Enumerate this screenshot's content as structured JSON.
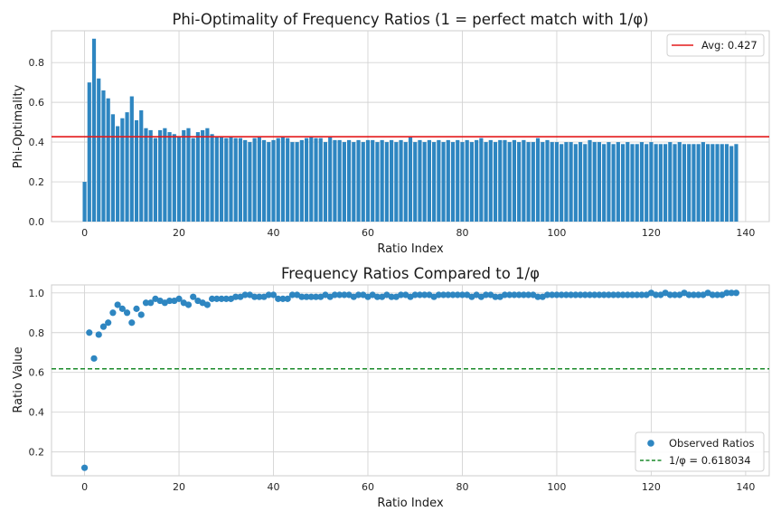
{
  "chart_data": [
    {
      "type": "bar",
      "title": "Phi-Optimality of Frequency Ratios (1 = perfect match with 1/φ)",
      "xlabel": "Ratio Index",
      "ylabel": "Phi-Optimality",
      "xlim": [
        -7,
        145
      ],
      "ylim": [
        0,
        0.96
      ],
      "xticks": [
        0,
        20,
        40,
        60,
        80,
        100,
        120,
        140
      ],
      "yticks": [
        0.0,
        0.2,
        0.4,
        0.6,
        0.8
      ],
      "ytick_labels": [
        "0.0",
        "0.2",
        "0.4",
        "0.6",
        "0.8"
      ],
      "grid": true,
      "bar_color": "#2e86c1",
      "avg_line": {
        "value": 0.427,
        "color": "#e31a1c",
        "label": "Avg: 0.427"
      },
      "legend_position": "top-right",
      "values": [
        0.2,
        0.7,
        0.92,
        0.72,
        0.66,
        0.62,
        0.54,
        0.48,
        0.52,
        0.55,
        0.63,
        0.51,
        0.56,
        0.47,
        0.46,
        0.42,
        0.46,
        0.47,
        0.45,
        0.44,
        0.43,
        0.46,
        0.47,
        0.42,
        0.45,
        0.46,
        0.47,
        0.44,
        0.43,
        0.43,
        0.42,
        0.43,
        0.42,
        0.42,
        0.41,
        0.4,
        0.42,
        0.43,
        0.41,
        0.4,
        0.41,
        0.42,
        0.43,
        0.42,
        0.4,
        0.4,
        0.41,
        0.42,
        0.43,
        0.42,
        0.42,
        0.4,
        0.43,
        0.41,
        0.41,
        0.4,
        0.41,
        0.4,
        0.41,
        0.4,
        0.41,
        0.41,
        0.4,
        0.41,
        0.4,
        0.41,
        0.4,
        0.41,
        0.4,
        0.43,
        0.4,
        0.41,
        0.4,
        0.41,
        0.4,
        0.41,
        0.4,
        0.41,
        0.4,
        0.41,
        0.4,
        0.41,
        0.4,
        0.41,
        0.42,
        0.4,
        0.41,
        0.4,
        0.41,
        0.41,
        0.4,
        0.41,
        0.4,
        0.41,
        0.4,
        0.4,
        0.42,
        0.4,
        0.41,
        0.4,
        0.4,
        0.39,
        0.4,
        0.4,
        0.39,
        0.4,
        0.39,
        0.41,
        0.4,
        0.4,
        0.39,
        0.4,
        0.39,
        0.4,
        0.39,
        0.4,
        0.39,
        0.39,
        0.4,
        0.39,
        0.4,
        0.39,
        0.39,
        0.39,
        0.4,
        0.39,
        0.4,
        0.39,
        0.39,
        0.39,
        0.39,
        0.4,
        0.39,
        0.39,
        0.39,
        0.39,
        0.39,
        0.38,
        0.39
      ]
    },
    {
      "type": "scatter",
      "title": "Frequency Ratios Compared to 1/φ",
      "xlabel": "Ratio Index",
      "ylabel": "Ratio Value",
      "xlim": [
        -7,
        145
      ],
      "ylim": [
        0.08,
        1.04
      ],
      "xticks": [
        0,
        20,
        40,
        60,
        80,
        100,
        120,
        140
      ],
      "yticks": [
        0.2,
        0.4,
        0.6,
        0.8,
        1.0
      ],
      "ytick_labels": [
        "0.2",
        "0.4",
        "0.6",
        "0.8",
        "1.0"
      ],
      "grid": true,
      "point_color": "#2e86c1",
      "series_label": "Observed Ratios",
      "ref_line": {
        "value": 0.618034,
        "color": "#1a8a2a",
        "label": "1/φ = 0.618034",
        "style": "dashed"
      },
      "legend_position": "bottom-right",
      "values": [
        0.12,
        0.8,
        0.67,
        0.79,
        0.83,
        0.85,
        0.9,
        0.94,
        0.92,
        0.9,
        0.85,
        0.92,
        0.89,
        0.95,
        0.95,
        0.97,
        0.96,
        0.95,
        0.96,
        0.96,
        0.97,
        0.95,
        0.94,
        0.98,
        0.96,
        0.95,
        0.94,
        0.97,
        0.97,
        0.97,
        0.97,
        0.97,
        0.98,
        0.98,
        0.99,
        0.99,
        0.98,
        0.98,
        0.98,
        0.99,
        0.99,
        0.97,
        0.97,
        0.97,
        0.99,
        0.99,
        0.98,
        0.98,
        0.98,
        0.98,
        0.98,
        0.99,
        0.98,
        0.99,
        0.99,
        0.99,
        0.99,
        0.98,
        0.99,
        0.99,
        0.98,
        0.99,
        0.98,
        0.98,
        0.99,
        0.98,
        0.98,
        0.99,
        0.99,
        0.98,
        0.99,
        0.99,
        0.99,
        0.99,
        0.98,
        0.99,
        0.99,
        0.99,
        0.99,
        0.99,
        0.99,
        0.99,
        0.98,
        0.99,
        0.98,
        0.99,
        0.99,
        0.98,
        0.98,
        0.99,
        0.99,
        0.99,
        0.99,
        0.99,
        0.99,
        0.99,
        0.98,
        0.98,
        0.99,
        0.99,
        0.99,
        0.99,
        0.99,
        0.99,
        0.99,
        0.99,
        0.99,
        0.99,
        0.99,
        0.99,
        0.99,
        0.99,
        0.99,
        0.99,
        0.99,
        0.99,
        0.99,
        0.99,
        0.99,
        0.99,
        1.0,
        0.99,
        0.99,
        1.0,
        0.99,
        0.99,
        0.99,
        1.0,
        0.99,
        0.99,
        0.99,
        0.99,
        1.0,
        0.99,
        0.99,
        0.99,
        1.0,
        1.0,
        1.0
      ]
    }
  ]
}
